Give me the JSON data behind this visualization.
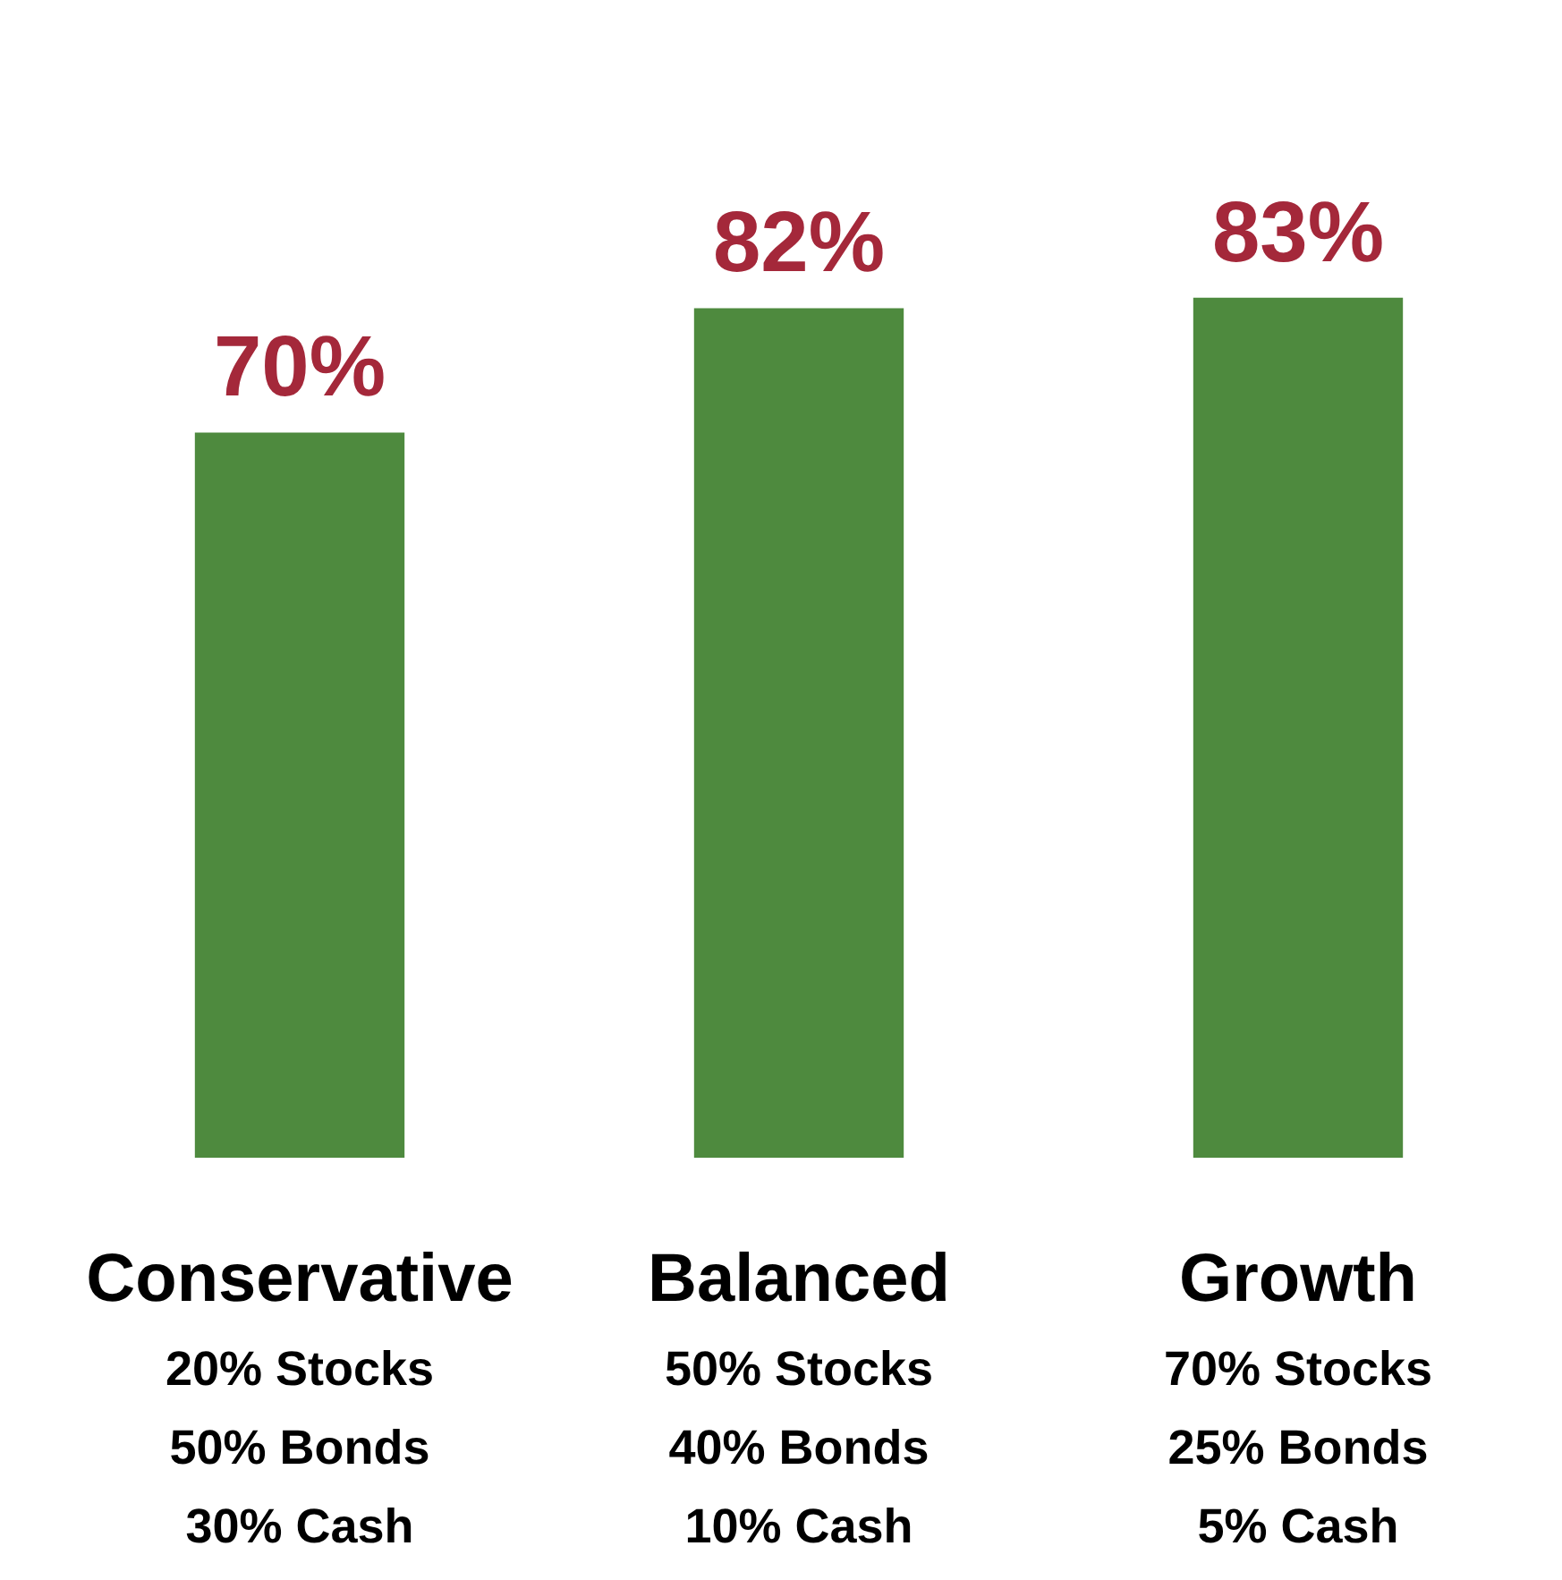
{
  "chart_data": {
    "type": "bar",
    "categories": [
      "Conservative\n20% Stocks\n50% Bonds\n30% Cash",
      "Balanced\n50% Stocks\n40% Bonds\n10% Cash",
      "Growth\n70% Stocks\n25% Bonds\n5% Cash"
    ],
    "values": [
      70,
      82,
      83
    ],
    "value_labels": [
      "70%",
      "82%",
      "83%"
    ],
    "color": "#4e8a3e",
    "grid": false
  }
}
